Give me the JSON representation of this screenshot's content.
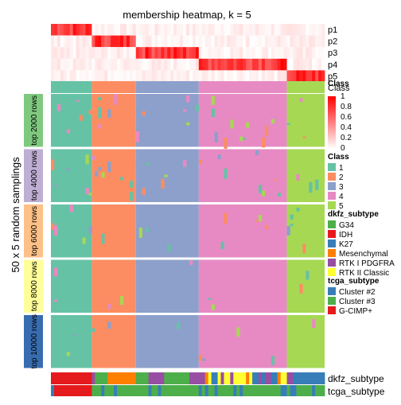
{
  "chart_data": {
    "type": "heatmap",
    "title": "membership heatmap, k = 5",
    "ylabel": "50 x 5 random samplings",
    "membership_rows": [
      "p1",
      "p2",
      "p3",
      "p4",
      "p5"
    ],
    "membership_legend": {
      "ticks": [
        "1",
        "0.8",
        "0.6",
        "0.4",
        "0.2",
        "0"
      ],
      "range": [
        0,
        1
      ],
      "colors": [
        "#ffffff",
        "#ff0000"
      ]
    },
    "class_row_label": "Class",
    "class_legend": {
      "title": "Class",
      "items": [
        {
          "label": "1",
          "color": "#66c2a5"
        },
        {
          "label": "2",
          "color": "#fc8d62"
        },
        {
          "label": "3",
          "color": "#8da0cb"
        },
        {
          "label": "4",
          "color": "#e78ac3"
        },
        {
          "label": "5",
          "color": "#a6d854"
        }
      ]
    },
    "dkfz_legend": {
      "title": "dkfz_subtype",
      "items": [
        {
          "label": "G34",
          "color": "#4daf4a"
        },
        {
          "label": "IDH",
          "color": "#e41a1c"
        },
        {
          "label": "K27",
          "color": "#377eb8"
        },
        {
          "label": "Mesenchymal",
          "color": "#ff7f00"
        },
        {
          "label": "RTK I PDGFRA",
          "color": "#984ea3"
        },
        {
          "label": "RTK II Classic",
          "color": "#ffff33"
        }
      ]
    },
    "tcga_legend": {
      "title": "tcga_subtype",
      "items": [
        {
          "label": "Cluster #2",
          "color": "#377eb8"
        },
        {
          "label": "Cluster #3",
          "color": "#4daf4a"
        },
        {
          "label": "G-CIMP+",
          "color": "#e41a1c"
        }
      ]
    },
    "row_groups": [
      {
        "label": "top 2000 rows",
        "color": "#7fc97f"
      },
      {
        "label": "top 4000 rows",
        "color": "#beaed4"
      },
      {
        "label": "top 6000 rows",
        "color": "#fdc086"
      },
      {
        "label": "top 8000 rows",
        "color": "#ffff99"
      },
      {
        "label": "top 10000 rows",
        "color": "#386cb0"
      }
    ],
    "sample_blocks": [
      {
        "class": "1",
        "samples": 13
      },
      {
        "class": "2",
        "samples": 14
      },
      {
        "class": "3",
        "samples": 20
      },
      {
        "class": "4",
        "samples": 28
      },
      {
        "class": "5",
        "samples": 12
      }
    ],
    "bottom_annotations": [
      "dkfz_subtype",
      "tcga_subtype"
    ]
  }
}
